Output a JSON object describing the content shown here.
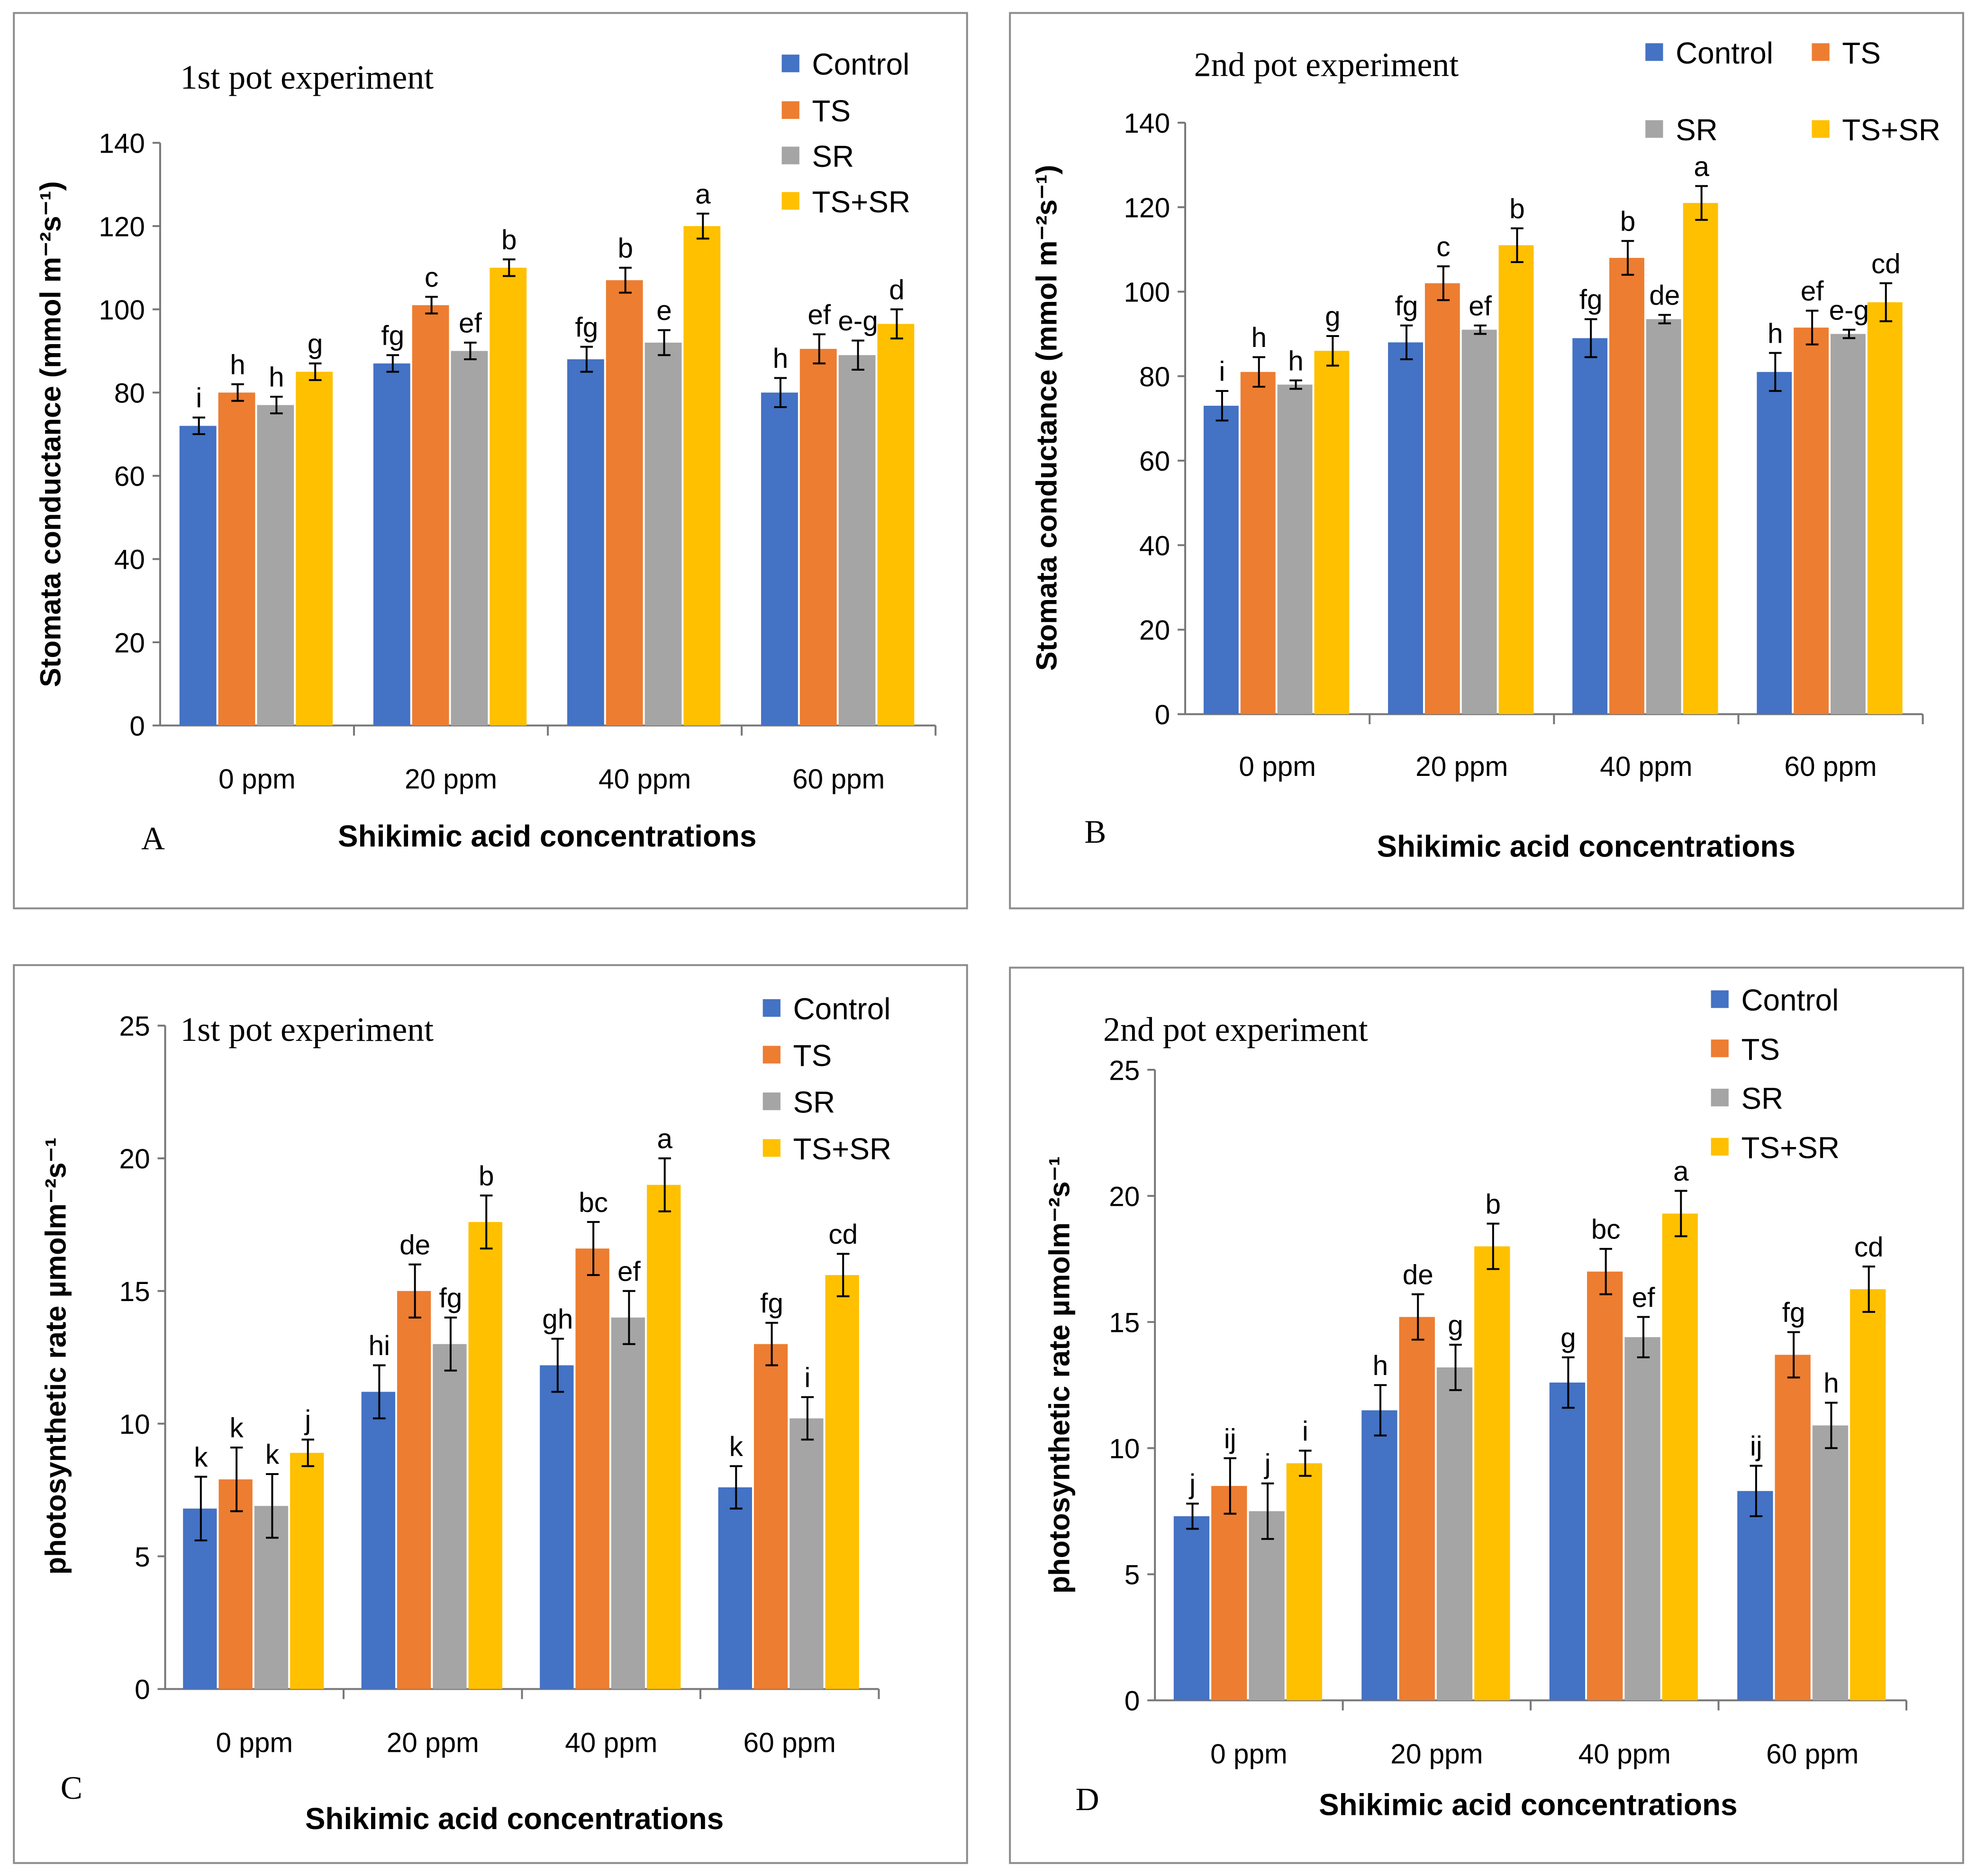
{
  "colors": {
    "Control": "#4472C4",
    "TS": "#ED7D31",
    "SR": "#A5A5A5",
    "TS+SR": "#FFC000"
  },
  "chart_data": [
    {
      "type": "bar",
      "panel_label": "A",
      "title": "1st pot experiment",
      "xlabel": "Shikimic acid concentrations",
      "ylabel": "Stomata conductance (mmol m⁻²s⁻¹)",
      "ylim": [
        0,
        140
      ],
      "yticks": [
        0,
        20,
        40,
        60,
        80,
        100,
        120,
        140
      ],
      "legend": "top-right",
      "grid": false,
      "categories": [
        "0 ppm",
        "20 ppm",
        "40 ppm",
        "60 ppm"
      ],
      "series": [
        {
          "name": "Control",
          "values": [
            72,
            87,
            88,
            80
          ],
          "errors": [
            2,
            2,
            3,
            3.5
          ],
          "letters": [
            "i",
            "fg",
            "fg",
            "h"
          ]
        },
        {
          "name": "TS",
          "values": [
            80,
            101,
            107,
            90.5
          ],
          "errors": [
            2,
            2,
            3,
            3.5
          ],
          "letters": [
            "h",
            "c",
            "b",
            "ef"
          ]
        },
        {
          "name": "SR",
          "values": [
            77,
            90,
            92,
            89
          ],
          "errors": [
            2,
            2,
            3,
            3.5
          ],
          "letters": [
            "h",
            "ef",
            "e",
            "e-g"
          ]
        },
        {
          "name": "TS+SR",
          "values": [
            85,
            110,
            120,
            96.5
          ],
          "errors": [
            2,
            2,
            3,
            3.5
          ],
          "letters": [
            "g",
            "b",
            "a",
            "d"
          ]
        }
      ]
    },
    {
      "type": "bar",
      "panel_label": "B",
      "title": "2nd pot experiment",
      "xlabel": "Shikimic acid concentrations",
      "ylabel": "Stomata conductance (mmol m⁻²s⁻¹)",
      "ylim": [
        0,
        140
      ],
      "yticks": [
        0,
        20,
        40,
        60,
        80,
        100,
        120,
        140
      ],
      "legend": "top",
      "grid": false,
      "categories": [
        "0 ppm",
        "20 ppm",
        "40 ppm",
        "60 ppm"
      ],
      "series": [
        {
          "name": "Control",
          "values": [
            73,
            88,
            89,
            81
          ],
          "errors": [
            3.5,
            4,
            4.5,
            4.5
          ],
          "letters": [
            "i",
            "fg",
            "fg",
            "h"
          ]
        },
        {
          "name": "TS",
          "values": [
            81,
            102,
            108,
            91.5
          ],
          "errors": [
            3.5,
            4,
            4,
            4
          ],
          "letters": [
            "h",
            "c",
            "b",
            "ef"
          ]
        },
        {
          "name": "SR",
          "values": [
            78,
            91,
            93.5,
            90
          ],
          "errors": [
            1,
            1,
            1,
            1
          ],
          "letters": [
            "h",
            "ef",
            "de",
            "e-g"
          ]
        },
        {
          "name": "TS+SR",
          "values": [
            86,
            111,
            121,
            97.5
          ],
          "errors": [
            3.5,
            4,
            4,
            4.5
          ],
          "letters": [
            "g",
            "b",
            "a",
            "cd"
          ]
        }
      ]
    },
    {
      "type": "bar",
      "panel_label": "C",
      "title": "1st pot experiment",
      "xlabel": "Shikimic acid concentrations",
      "ylabel": "photosynthetic rate µmolm⁻²s⁻¹",
      "ylim": [
        0,
        25
      ],
      "yticks": [
        0,
        5,
        10,
        15,
        20,
        25
      ],
      "legend": "top-right",
      "grid": false,
      "categories": [
        "0 ppm",
        "20 ppm",
        "40 ppm",
        "60 ppm"
      ],
      "series": [
        {
          "name": "Control",
          "values": [
            6.8,
            11.2,
            12.2,
            7.6
          ],
          "errors": [
            1.2,
            1,
            1,
            0.8
          ],
          "letters": [
            "k",
            "hi",
            "gh",
            "k"
          ]
        },
        {
          "name": "TS",
          "values": [
            7.9,
            15,
            16.6,
            13
          ],
          "errors": [
            1.2,
            1,
            1,
            0.8
          ],
          "letters": [
            "k",
            "de",
            "bc",
            "fg"
          ]
        },
        {
          "name": "SR",
          "values": [
            6.9,
            13,
            14,
            10.2
          ],
          "errors": [
            1.2,
            1,
            1,
            0.8
          ],
          "letters": [
            "k",
            "fg",
            "ef",
            "i"
          ]
        },
        {
          "name": "TS+SR",
          "values": [
            8.9,
            17.6,
            19,
            15.6
          ],
          "errors": [
            0.5,
            1,
            1,
            0.8
          ],
          "letters": [
            "j",
            "b",
            "a",
            "cd"
          ]
        }
      ]
    },
    {
      "type": "bar",
      "panel_label": "D",
      "title": "2nd pot experiment",
      "xlabel": "Shikimic acid concentrations",
      "ylabel": "photosynthetic rate µmolm⁻²s⁻¹",
      "ylim": [
        0,
        25
      ],
      "yticks": [
        0,
        5,
        10,
        15,
        20,
        25
      ],
      "legend": "top-right",
      "grid": false,
      "categories": [
        "0 ppm",
        "20 ppm",
        "40 ppm",
        "60 ppm"
      ],
      "series": [
        {
          "name": "Control",
          "values": [
            7.3,
            11.5,
            12.6,
            8.3
          ],
          "errors": [
            0.5,
            1,
            1,
            1
          ],
          "letters": [
            "j",
            "h",
            "g",
            "ij"
          ]
        },
        {
          "name": "TS",
          "values": [
            8.5,
            15.2,
            17,
            13.7
          ],
          "errors": [
            1.1,
            0.9,
            0.9,
            0.9
          ],
          "letters": [
            "ij",
            "de",
            "bc",
            "fg"
          ]
        },
        {
          "name": "SR",
          "values": [
            7.5,
            13.2,
            14.4,
            10.9
          ],
          "errors": [
            1.1,
            0.9,
            0.8,
            0.9
          ],
          "letters": [
            "j",
            "g",
            "ef",
            "h"
          ]
        },
        {
          "name": "TS+SR",
          "values": [
            9.4,
            18,
            19.3,
            16.3
          ],
          "errors": [
            0.5,
            0.9,
            0.9,
            0.9
          ],
          "letters": [
            "i",
            "b",
            "a",
            "cd"
          ]
        }
      ]
    }
  ]
}
